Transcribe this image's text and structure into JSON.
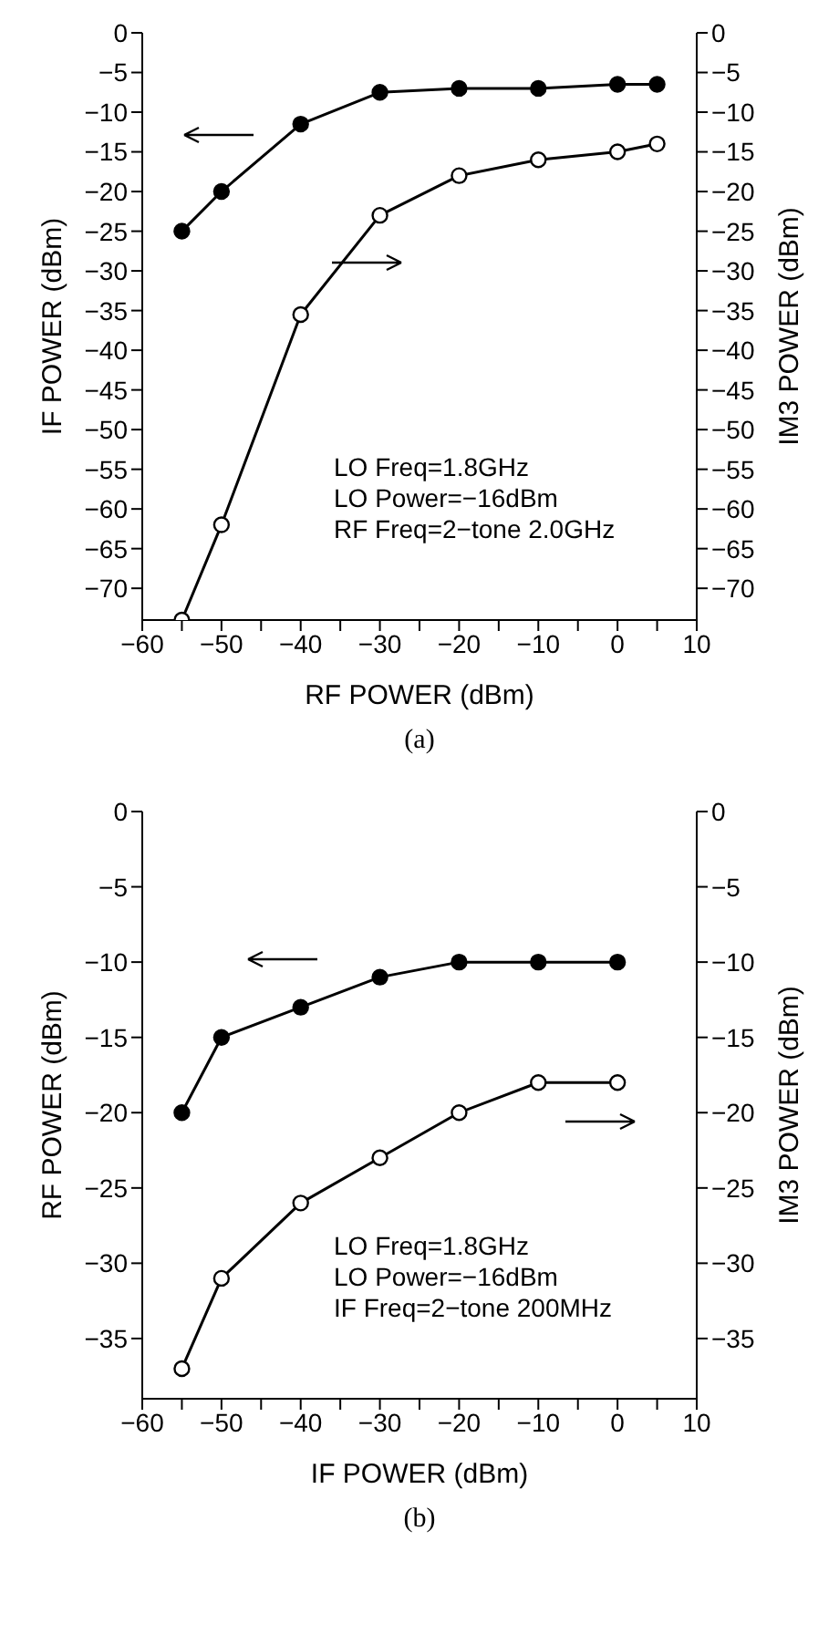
{
  "chart_data": [
    {
      "type": "line",
      "xlabel": "RF POWER (dBm)",
      "ylabel": "IF POWER (dBm)",
      "y2label": "IM3 POWER (dBm)",
      "annotations": [
        "LO Freq=1.8GHz",
        "LO Power=−16dBm",
        "RF Freq=2−tone 2.0GHz",
        "(a)"
      ],
      "x": [
        -55,
        -50,
        -40,
        -30,
        -20,
        -10,
        0,
        5
      ],
      "series": [
        {
          "color": "#000000",
          "values": [
            -25,
            -20,
            -11.5,
            -7.5,
            -7,
            -7,
            -6.5,
            -6.5
          ]
        },
        {
          "color": "#000000",
          "axis": "y2",
          "values": [
            -74,
            -62,
            -35.5,
            -23,
            -18,
            -16,
            -15,
            -14
          ]
        }
      ],
      "xlim": [
        -60,
        10
      ],
      "xticks": [
        -60,
        {
          "value": -55,
          "label": null
        },
        -50,
        {
          "value": -45,
          "label": null
        },
        -40,
        {
          "value": -35,
          "label": null
        },
        -30,
        {
          "value": -25,
          "label": null
        },
        -20,
        {
          "value": -15,
          "label": null
        },
        -10,
        {
          "value": -5,
          "label": null
        },
        0,
        {
          "value": 5,
          "label": null
        },
        10
      ],
      "ylim": [
        -74,
        0
      ],
      "yticks": [
        0,
        -5,
        -10,
        -15,
        -20,
        -25,
        -30,
        -35,
        -40,
        -45,
        -50,
        -55,
        -60,
        -65,
        -70
      ],
      "y2lim": [
        -74,
        0
      ],
      "y2ticks": [
        0,
        -5,
        -10,
        -15,
        -20,
        -25,
        -30,
        -35,
        -40,
        -45,
        -50,
        -55,
        -60,
        -65,
        -70
      ],
      "marker": "circle",
      "line_style": "solid",
      "grid": false,
      "legend": false
    },
    {
      "type": "line",
      "xlabel": "IF POWER (dBm)",
      "ylabel": "RF POWER (dBm)",
      "y2label": "IM3 POWER (dBm)",
      "annotations": [
        "LO Freq=1.8GHz",
        "LO Power=−16dBm",
        "IF Freq=2−tone 200MHz",
        "(b)"
      ],
      "x": [
        -55,
        -50,
        -40,
        -30,
        -20,
        -10,
        0
      ],
      "series": [
        {
          "color": "#000000",
          "values": [
            -20,
            -15,
            -13,
            -11,
            -10,
            -10,
            -10
          ]
        },
        {
          "color": "#000000",
          "axis": "y2",
          "values": [
            -37,
            -31,
            -26,
            -23,
            -20,
            -18,
            -18
          ]
        }
      ],
      "xlim": [
        -60,
        10
      ],
      "xticks": [
        -60,
        {
          "value": -55,
          "label": null
        },
        -50,
        {
          "value": -45,
          "label": null
        },
        -40,
        {
          "value": -35,
          "label": null
        },
        -30,
        {
          "value": -25,
          "label": null
        },
        -20,
        {
          "value": -15,
          "label": null
        },
        -10,
        {
          "value": -5,
          "label": null
        },
        0,
        {
          "value": 5,
          "label": null
        },
        10
      ],
      "ylim": [
        -39,
        0
      ],
      "yticks": [
        0,
        -5,
        -10,
        -15,
        -20,
        -25,
        -30,
        -35
      ],
      "y2lim": [
        -39,
        0
      ],
      "y2ticks": [
        0,
        -5,
        -10,
        -15,
        -20,
        -25,
        -30,
        -35
      ],
      "marker": "circle",
      "line_style": "solid",
      "grid": false,
      "legend": false
    }
  ]
}
